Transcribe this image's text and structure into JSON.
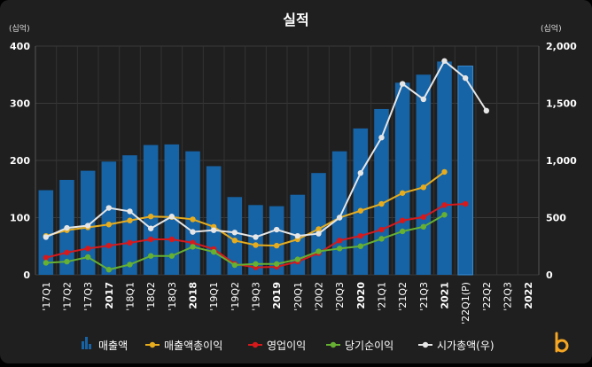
{
  "chart_data": {
    "type": "bar",
    "title": "실적",
    "left_unit": "(십억)",
    "right_unit": "(십억)",
    "left_ylim": [
      0,
      400
    ],
    "right_ylim": [
      0,
      2000
    ],
    "left_ticks": [
      "0",
      "100",
      "200",
      "300",
      "400"
    ],
    "right_ticks": [
      "0",
      "500",
      "1,000",
      "1,500",
      "2,000"
    ],
    "categories": [
      "'17Q1",
      "'17Q2",
      "'17Q3",
      "2017",
      "'18Q1",
      "'18Q2",
      "'18Q3",
      "2018",
      "'19Q1",
      "'19Q2",
      "'19Q3",
      "2019",
      "'20Q1",
      "'20Q2",
      "'20Q3",
      "2020",
      "'21Q1",
      "'21Q2",
      "'21Q3",
      "2021",
      "'22Q1(P)",
      "'22Q2",
      "'22Q3",
      "2022"
    ],
    "bold_categories": [
      "2017",
      "2018",
      "2019",
      "2020",
      "2021",
      "2022"
    ],
    "series": [
      {
        "name": "매출액",
        "axis": "left",
        "kind": "bar",
        "color": "#1663a6",
        "values": [
          148,
          166,
          182,
          198,
          209,
          227,
          228,
          216,
          190,
          136,
          122,
          120,
          140,
          178,
          216,
          256,
          290,
          336,
          350,
          373,
          365,
          null,
          null,
          null
        ]
      },
      {
        "name": "매출액총이익",
        "axis": "left",
        "kind": "line",
        "color": "#e6ac1e",
        "values": [
          68,
          78,
          83,
          88,
          95,
          102,
          101,
          97,
          84,
          60,
          52,
          51,
          62,
          80,
          100,
          112,
          124,
          143,
          153,
          180,
          null,
          null,
          null,
          null
        ]
      },
      {
        "name": "영업이익",
        "axis": "left",
        "kind": "line",
        "color": "#d7191c",
        "values": [
          30,
          39,
          46,
          51,
          56,
          62,
          62,
          56,
          45,
          19,
          13,
          14,
          23,
          38,
          60,
          68,
          79,
          95,
          101,
          122,
          124,
          null,
          null,
          null
        ]
      },
      {
        "name": "당기순이익",
        "axis": "left",
        "kind": "line",
        "color": "#66b032",
        "values": [
          21,
          23,
          31,
          9,
          18,
          33,
          33,
          49,
          40,
          17,
          19,
          19,
          27,
          41,
          46,
          50,
          63,
          76,
          84,
          105,
          null,
          null,
          null,
          null
        ]
      },
      {
        "name": "시가총액(우)",
        "axis": "right",
        "kind": "line",
        "color": "#e6e6e6",
        "values": [
          330,
          410,
          430,
          585,
          555,
          405,
          510,
          375,
          390,
          370,
          330,
          395,
          340,
          360,
          500,
          890,
          1200,
          1670,
          1535,
          1870,
          1720,
          1435,
          null,
          null
        ]
      }
    ],
    "grid": true,
    "legend_position": "bottom"
  },
  "logo": {
    "name": "b-logo",
    "color": "#f5a623"
  }
}
